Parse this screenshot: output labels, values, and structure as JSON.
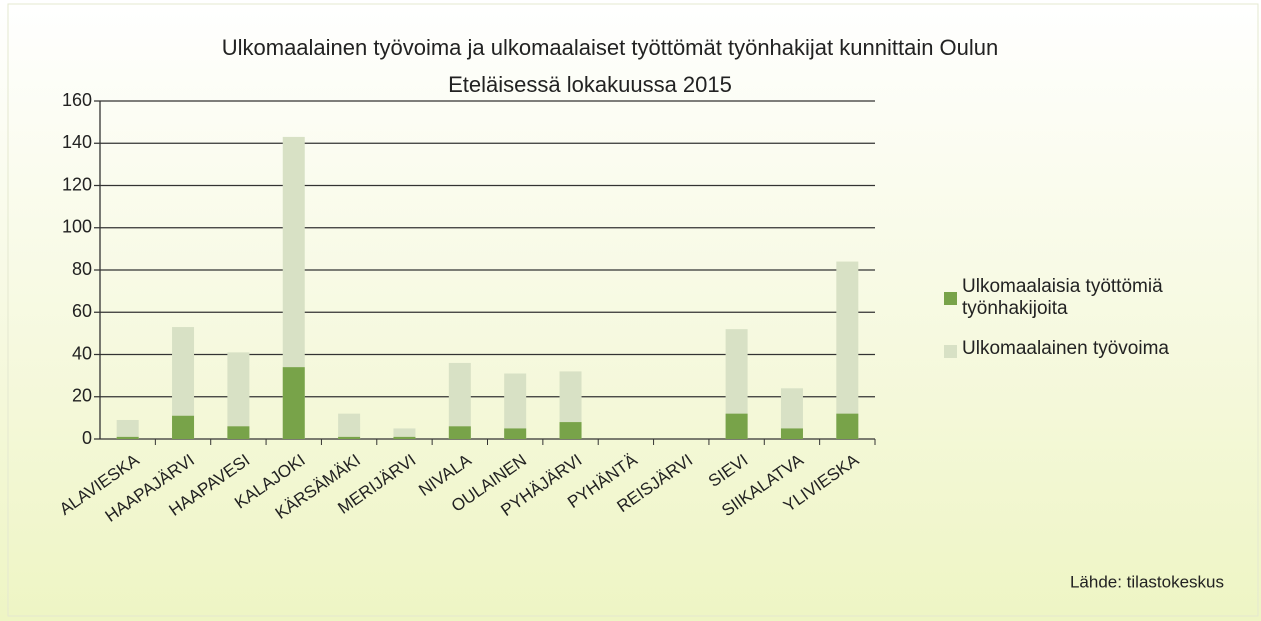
{
  "chart_data": {
    "type": "bar",
    "title": [
      "Ulkomaalainen työvoima ja ulkomaalaiset työttömät työnhakijat kunnittain Oulun",
      "Eteläisessä  lokakuussa 2015"
    ],
    "categories": [
      "ALAVIESKA",
      "HAAPAJÄRVI",
      "HAAPAVESI",
      "KALAJOKI",
      "KÄRSÄMÄKI",
      "MERIJÄRVI",
      "NIVALA",
      "OULAINEN",
      "PYHÄJÄRVI",
      "PYHÄNTÄ",
      "REISJÄRVI",
      "SIEVI",
      "SIIKALATVA",
      "YLIVIESKA"
    ],
    "series": [
      {
        "name": "Ulkomaalaisia työttömiä työnhakijoita",
        "color": "#78a349",
        "values": [
          1,
          11,
          6,
          34,
          1,
          1,
          6,
          5,
          8,
          0,
          0,
          12,
          5,
          12
        ]
      },
      {
        "name": "Ulkomaalainen työvoima",
        "color": "#d8e1c5",
        "values": [
          9,
          53,
          41,
          143,
          12,
          5,
          36,
          31,
          32,
          0,
          0,
          52,
          24,
          84
        ]
      }
    ],
    "ylim": [
      0,
      160
    ],
    "yticks": [
      0,
      20,
      40,
      60,
      80,
      100,
      120,
      140,
      160
    ],
    "grid": true,
    "legend": "right",
    "source": "Lähde: tilastokeskus"
  }
}
